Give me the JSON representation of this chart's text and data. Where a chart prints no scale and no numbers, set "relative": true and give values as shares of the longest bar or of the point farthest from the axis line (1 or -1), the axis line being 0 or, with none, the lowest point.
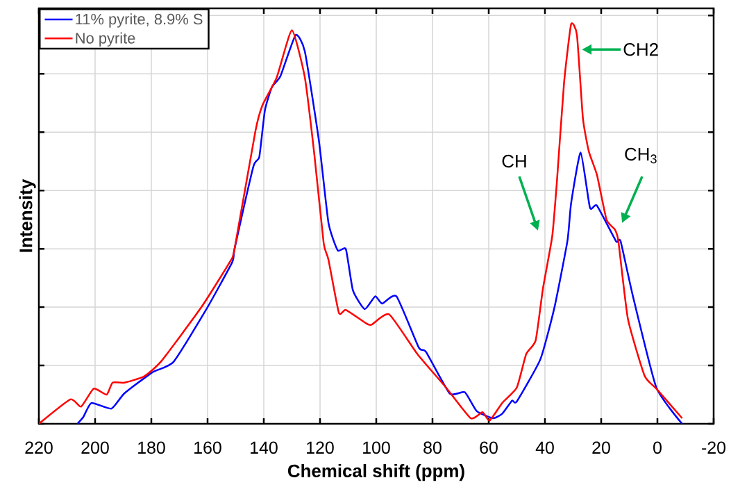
{
  "chart_data": {
    "type": "line",
    "relative": true,
    "xlabel": "Chemical shift (ppm)",
    "ylabel": "Intensity",
    "xlim": [
      220,
      -20
    ],
    "xticks": [
      220,
      200,
      180,
      160,
      140,
      120,
      100,
      80,
      60,
      40,
      20,
      0,
      -20
    ],
    "grid": true,
    "legend": "top left",
    "series": [
      {
        "name": "11% pyrite, 8.9% S",
        "color": "#0000ff",
        "x": [
          206.3,
          204.2,
          201.3,
          194.2,
          189.6,
          179.6,
          172.1,
          160.4,
          151.2,
          150.4,
          143.7,
          141.6,
          139.6,
          137.1,
          134.1,
          128.7,
          125.4,
          120.4,
          117,
          113.7,
          110.8,
          108.3,
          104.1,
          100.4,
          97.9,
          92.8,
          84.9,
          82.3,
          73.9,
          68.5,
          64.3,
          58.4,
          55.1,
          51.7,
          50,
          41.6,
          36.6,
          32,
          30.7,
          27.3,
          24,
          21.5,
          14.7,
          13.1,
          8.8,
          0.4,
          -8.8
        ],
        "values": [
          0,
          0.017,
          0.052,
          0.038,
          0.076,
          0.129,
          0.155,
          0.287,
          0.405,
          0.438,
          0.644,
          0.668,
          0.785,
          0.843,
          0.87,
          0.973,
          0.932,
          0.709,
          0.503,
          0.434,
          0.437,
          0.334,
          0.287,
          0.319,
          0.301,
          0.319,
          0.191,
          0.18,
          0.076,
          0.079,
          0.032,
          0.014,
          0.026,
          0.058,
          0.056,
          0.162,
          0.292,
          0.458,
          0.552,
          0.679,
          0.541,
          0.546,
          0.457,
          0.457,
          0.322,
          0.091,
          0
        ]
      },
      {
        "name": "No pyrite",
        "color": "#ff0000",
        "x": [
          220,
          208.8,
          205,
          200.5,
          195.9,
          193.8,
          189.6,
          182.5,
          176.3,
          162.1,
          152.1,
          150.4,
          143,
          140.5,
          135.4,
          130,
          125.4,
          122,
          118.7,
          117,
          113.3,
          110.8,
          103.7,
          101.7,
          95.4,
          85.3,
          75.2,
          66.4,
          62.2,
          59.7,
          55.1,
          50,
          46.7,
          43.3,
          40.7,
          37.4,
          35.7,
          33.2,
          30.7,
          28.6,
          26.5,
          24.4,
          21.5,
          18.1,
          15.2,
          13.9,
          10.5,
          4.6,
          0.4,
          -8.8
        ],
        "values": [
          0,
          0.061,
          0.043,
          0.088,
          0.073,
          0.103,
          0.103,
          0.119,
          0.158,
          0.293,
          0.405,
          0.438,
          0.732,
          0.797,
          0.867,
          0.985,
          0.867,
          0.673,
          0.452,
          0.411,
          0.278,
          0.285,
          0.252,
          0.248,
          0.274,
          0.174,
          0.091,
          0.014,
          0.029,
          0.008,
          0.053,
          0.091,
          0.174,
          0.209,
          0.339,
          0.47,
          0.611,
          0.854,
          1,
          0.972,
          0.765,
          0.682,
          0.623,
          0.511,
          0.487,
          0.458,
          0.263,
          0.121,
          0.088,
          0.014
        ]
      }
    ],
    "annotations": [
      {
        "text": "CH2",
        "x": 26.9,
        "y": 0.937
      },
      "CH",
      "CH$_{3}$"
    ]
  }
}
